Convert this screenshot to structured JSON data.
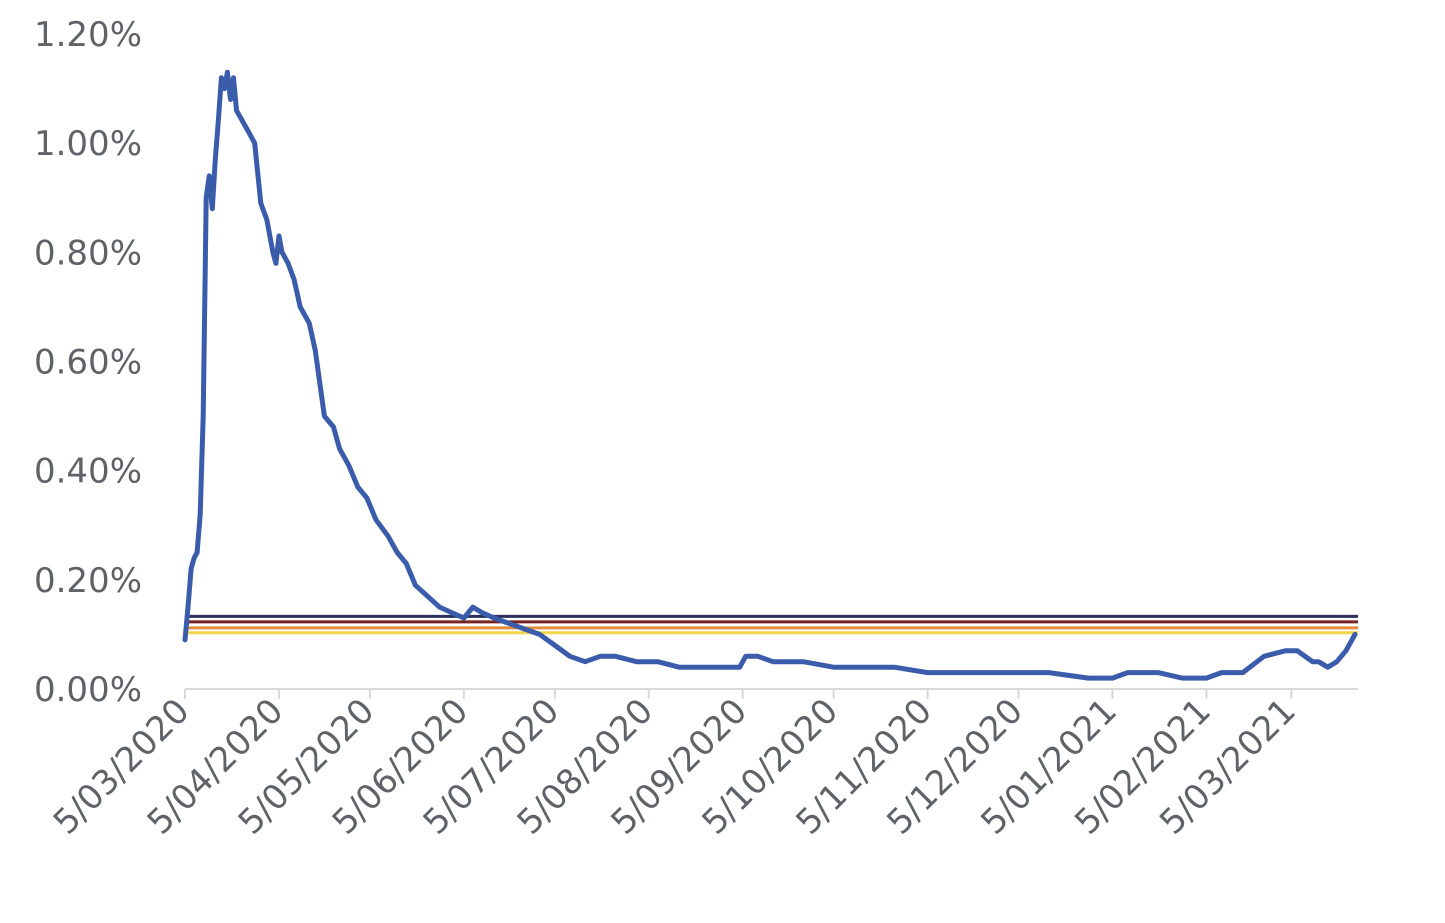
{
  "chart_data": {
    "type": "line",
    "title": "",
    "xlabel": "",
    "ylabel": "",
    "x_tick_labels": [
      "5/03/2020",
      "5/04/2020",
      "5/05/2020",
      "5/06/2020",
      "5/07/2020",
      "5/08/2020",
      "5/09/2020",
      "5/10/2020",
      "5/11/2020",
      "5/12/2020",
      "5/01/2021",
      "5/02/2021",
      "5/03/2021"
    ],
    "y_tick_labels": [
      "0.00%",
      "0.20%",
      "0.40%",
      "0.60%",
      "0.80%",
      "1.00%",
      "1.20%"
    ],
    "ylim": [
      0,
      0.012
    ],
    "xlim": [
      "2020-03-05",
      "2021-03-27"
    ],
    "grid": false,
    "legend": "none",
    "series": [
      {
        "color": "#3a5cab",
        "points": [
          [
            "2020-03-05",
            0.0009
          ],
          [
            "2020-03-06",
            0.0015
          ],
          [
            "2020-03-07",
            0.0022
          ],
          [
            "2020-03-08",
            0.0024
          ],
          [
            "2020-03-09",
            0.0025
          ],
          [
            "2020-03-10",
            0.0032
          ],
          [
            "2020-03-11",
            0.005
          ],
          [
            "2020-03-12",
            0.009
          ],
          [
            "2020-03-13",
            0.0094
          ],
          [
            "2020-03-14",
            0.0088
          ],
          [
            "2020-03-15",
            0.0097
          ],
          [
            "2020-03-16",
            0.0104
          ],
          [
            "2020-03-17",
            0.0112
          ],
          [
            "2020-03-18",
            0.011
          ],
          [
            "2020-03-19",
            0.0113
          ],
          [
            "2020-03-20",
            0.0108
          ],
          [
            "2020-03-21",
            0.0112
          ],
          [
            "2020-03-22",
            0.0106
          ],
          [
            "2020-03-24",
            0.0104
          ],
          [
            "2020-03-26",
            0.0102
          ],
          [
            "2020-03-28",
            0.01
          ],
          [
            "2020-03-30",
            0.0089
          ],
          [
            "2020-04-01",
            0.0086
          ],
          [
            "2020-04-03",
            0.008
          ],
          [
            "2020-04-04",
            0.0078
          ],
          [
            "2020-04-05",
            0.0083
          ],
          [
            "2020-04-06",
            0.008
          ],
          [
            "2020-04-08",
            0.0078
          ],
          [
            "2020-04-10",
            0.0075
          ],
          [
            "2020-04-12",
            0.007
          ],
          [
            "2020-04-15",
            0.0067
          ],
          [
            "2020-04-17",
            0.0062
          ],
          [
            "2020-04-20",
            0.005
          ],
          [
            "2020-04-23",
            0.0048
          ],
          [
            "2020-04-25",
            0.0044
          ],
          [
            "2020-04-28",
            0.0041
          ],
          [
            "2020-05-01",
            0.0037
          ],
          [
            "2020-05-04",
            0.0035
          ],
          [
            "2020-05-07",
            0.0031
          ],
          [
            "2020-05-11",
            0.0028
          ],
          [
            "2020-05-14",
            0.0025
          ],
          [
            "2020-05-17",
            0.0023
          ],
          [
            "2020-05-20",
            0.0019
          ],
          [
            "2020-05-24",
            0.0017
          ],
          [
            "2020-05-28",
            0.0015
          ],
          [
            "2020-06-01",
            0.0014
          ],
          [
            "2020-06-05",
            0.0013
          ],
          [
            "2020-06-08",
            0.0015
          ],
          [
            "2020-06-11",
            0.0014
          ],
          [
            "2020-06-15",
            0.0013
          ],
          [
            "2020-06-20",
            0.0012
          ],
          [
            "2020-06-25",
            0.0011
          ],
          [
            "2020-06-30",
            0.001
          ],
          [
            "2020-07-05",
            0.0008
          ],
          [
            "2020-07-10",
            0.0006
          ],
          [
            "2020-07-15",
            0.0005
          ],
          [
            "2020-07-20",
            0.0006
          ],
          [
            "2020-07-25",
            0.0006
          ],
          [
            "2020-08-01",
            0.0005
          ],
          [
            "2020-08-08",
            0.0005
          ],
          [
            "2020-08-15",
            0.0004
          ],
          [
            "2020-08-22",
            0.0004
          ],
          [
            "2020-08-29",
            0.0004
          ],
          [
            "2020-09-04",
            0.0004
          ],
          [
            "2020-09-06",
            0.0006
          ],
          [
            "2020-09-10",
            0.0006
          ],
          [
            "2020-09-15",
            0.0005
          ],
          [
            "2020-09-25",
            0.0005
          ],
          [
            "2020-10-05",
            0.0004
          ],
          [
            "2020-10-15",
            0.0004
          ],
          [
            "2020-10-25",
            0.0004
          ],
          [
            "2020-11-05",
            0.0003
          ],
          [
            "2020-11-12",
            0.0003
          ],
          [
            "2020-11-20",
            0.0003
          ],
          [
            "2020-12-01",
            0.0003
          ],
          [
            "2020-12-15",
            0.0003
          ],
          [
            "2020-12-28",
            0.0002
          ],
          [
            "2021-01-05",
            0.0002
          ],
          [
            "2021-01-10",
            0.0003
          ],
          [
            "2021-01-20",
            0.0003
          ],
          [
            "2021-01-28",
            0.0002
          ],
          [
            "2021-02-05",
            0.0002
          ],
          [
            "2021-02-10",
            0.0003
          ],
          [
            "2021-02-17",
            0.0003
          ],
          [
            "2021-02-24",
            0.0006
          ],
          [
            "2021-03-03",
            0.0007
          ],
          [
            "2021-03-07",
            0.0007
          ],
          [
            "2021-03-12",
            0.0005
          ],
          [
            "2021-03-14",
            0.0005
          ],
          [
            "2021-03-17",
            0.0004
          ],
          [
            "2021-03-20",
            0.0005
          ],
          [
            "2021-03-23",
            0.0007
          ],
          [
            "2021-03-26",
            0.001
          ]
        ]
      }
    ],
    "reference_lines": [
      {
        "y": 0.00133,
        "color": "#2a2f5e"
      },
      {
        "y": 0.00123,
        "color": "#7a2323"
      },
      {
        "y": 0.00112,
        "color": "#e38d3a"
      },
      {
        "y": 0.00103,
        "color": "#f2d649"
      }
    ]
  }
}
